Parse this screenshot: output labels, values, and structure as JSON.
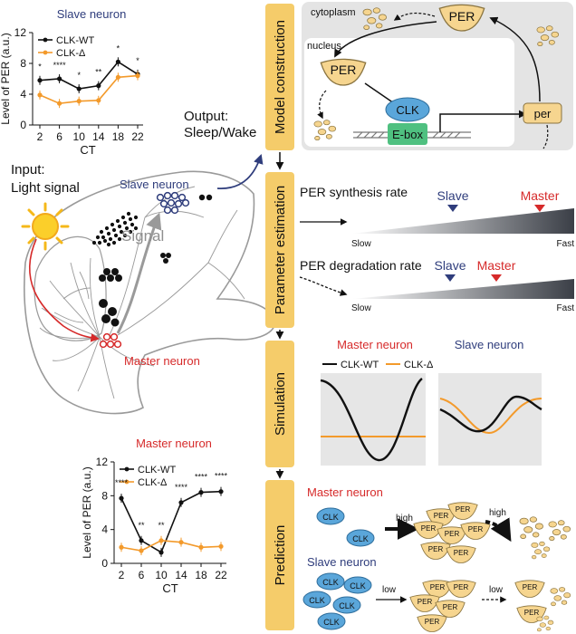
{
  "colors": {
    "master": "#d62a2a",
    "slave": "#2f3d7c",
    "clk_wt": "#111111",
    "clk_delta": "#f39a2b",
    "stage_box": "#f5cc6a",
    "per_fill": "#f6d58f",
    "clk_fill": "#5aa6da",
    "ebox_fill": "#4fc080",
    "panel_gray": "#e4e4e4"
  },
  "stages": [
    "Model construction",
    "Parameter estimation",
    "Simulation",
    "Prediction"
  ],
  "model": {
    "cytoplasm": "cytoplasm",
    "nucleus": "nucleus",
    "per_protein": "PER",
    "clk": "CLK",
    "ebox": "E-box",
    "per_gene": "per"
  },
  "params": {
    "synthesis_label": "PER synthesis rate",
    "degradation_label": "PER degradation rate",
    "slow": "Slow",
    "fast": "Fast",
    "slave": "Slave",
    "master": "Master"
  },
  "simulation": {
    "master_title": "Master neuron",
    "slave_title": "Slave neuron",
    "legend_wt": "CLK-WT",
    "legend_delta": "CLK-Δ"
  },
  "prediction": {
    "master_title": "Master neuron",
    "slave_title": "Slave neuron",
    "high1": "high",
    "high2": "high",
    "low1": "low",
    "low2": "low",
    "clk": "CLK",
    "per": "PER"
  },
  "brain": {
    "input_line1": "Input:",
    "input_line2": "Light signal",
    "output_line1": "Output:",
    "output_line2": "Sleep/Wake",
    "signal": "Signal",
    "slave_label": "Slave neuron",
    "master_label": "Master neuron"
  },
  "chart_data": [
    {
      "type": "line",
      "title": "Slave neuron",
      "xlabel": "CT",
      "ylabel": "Level of PER (a.u.)",
      "x": [
        2,
        6,
        10,
        14,
        18,
        22
      ],
      "ylim": [
        0,
        12
      ],
      "yticks": [
        0,
        4,
        8,
        12
      ],
      "series": [
        {
          "name": "CLK-WT",
          "values": [
            5.8,
            6.0,
            4.7,
            5.1,
            8.2,
            6.6
          ]
        },
        {
          "name": "CLK-Δ",
          "values": [
            3.9,
            2.8,
            3.1,
            3.2,
            6.2,
            6.4
          ]
        }
      ],
      "significance": [
        "*",
        "****",
        "*",
        "**",
        "*",
        "*"
      ]
    },
    {
      "type": "line",
      "title": "Master neuron",
      "xlabel": "CT",
      "ylabel": "Level of PER (a.u.)",
      "x": [
        2,
        6,
        10,
        14,
        18,
        22
      ],
      "ylim": [
        0,
        12
      ],
      "yticks": [
        0,
        4,
        8,
        12
      ],
      "series": [
        {
          "name": "CLK-WT",
          "values": [
            7.7,
            2.7,
            1.3,
            7.2,
            8.4,
            8.5
          ]
        },
        {
          "name": "CLK-Δ",
          "values": [
            1.9,
            1.5,
            2.7,
            2.5,
            1.9,
            2.0
          ]
        }
      ],
      "significance": [
        "****",
        "**",
        "**",
        "****",
        "****",
        "****"
      ]
    }
  ]
}
